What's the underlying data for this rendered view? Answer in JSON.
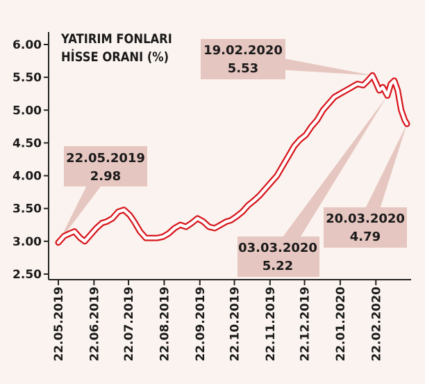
{
  "chart_data": {
    "type": "line",
    "title_lines": [
      "YATIRIM FONLARI",
      "HİSSE ORANI (%)"
    ],
    "ylim": [
      2.5,
      6.0
    ],
    "yticks": [
      "6.00",
      "5.50",
      "5.00",
      "4.50",
      "4.00",
      "3.50",
      "3.00",
      "2.50"
    ],
    "ytick_values": [
      6.0,
      5.5,
      5.0,
      4.5,
      4.0,
      3.5,
      3.0,
      2.5
    ],
    "xtick_labels": [
      "22.05.2019",
      "22.06.2019",
      "22.07.2019",
      "22.08.2019",
      "22.09.2019",
      "22.10.2019",
      "22.11.2019",
      "22.12.2019",
      "22.01.2020",
      "22.02.2020"
    ],
    "xtick_dates": [
      "2019-05-22",
      "2019-06-22",
      "2019-07-22",
      "2019-08-22",
      "2019-09-22",
      "2019-10-22",
      "2019-11-22",
      "2019-12-22",
      "2020-01-22",
      "2020-02-22"
    ],
    "x_range": [
      "2019-05-22",
      "2020-03-20"
    ],
    "line_color": "#d7141c",
    "annotation_bg": "#e6c6c0",
    "grid": false,
    "series": [
      {
        "x": [
          "2019-05-22",
          "2019-05-27",
          "2019-06-01",
          "2019-06-05",
          "2019-06-10",
          "2019-06-14",
          "2019-06-19",
          "2019-06-24",
          "2019-06-29",
          "2019-07-03",
          "2019-07-08",
          "2019-07-13",
          "2019-07-18",
          "2019-07-23",
          "2019-07-27",
          "2019-08-01",
          "2019-08-06",
          "2019-08-11",
          "2019-08-16",
          "2019-08-21",
          "2019-08-26",
          "2019-08-31",
          "2019-09-05",
          "2019-09-10",
          "2019-09-15",
          "2019-09-20",
          "2019-09-25",
          "2019-09-30",
          "2019-10-05",
          "2019-10-10",
          "2019-10-15",
          "2019-10-19",
          "2019-10-24",
          "2019-10-29",
          "2019-11-03",
          "2019-11-08",
          "2019-11-13",
          "2019-11-18",
          "2019-11-23",
          "2019-11-28",
          "2019-12-03",
          "2019-12-08",
          "2019-12-13",
          "2019-12-18",
          "2019-12-23",
          "2019-12-28",
          "2020-01-02",
          "2020-01-07",
          "2020-01-12",
          "2020-01-17",
          "2020-01-22",
          "2020-01-27",
          "2020-02-01",
          "2020-02-06",
          "2020-02-11",
          "2020-02-15",
          "2020-02-19",
          "2020-02-22",
          "2020-02-25",
          "2020-02-28",
          "2020-03-03",
          "2020-03-06",
          "2020-03-09",
          "2020-03-12",
          "2020-03-15",
          "2020-03-18",
          "2020-03-20"
        ],
        "values": [
          2.98,
          3.08,
          3.12,
          3.15,
          3.05,
          3.0,
          3.1,
          3.2,
          3.28,
          3.3,
          3.35,
          3.45,
          3.48,
          3.4,
          3.3,
          3.15,
          3.05,
          3.05,
          3.05,
          3.07,
          3.12,
          3.2,
          3.25,
          3.22,
          3.28,
          3.35,
          3.3,
          3.22,
          3.2,
          3.25,
          3.3,
          3.32,
          3.38,
          3.45,
          3.55,
          3.62,
          3.7,
          3.8,
          3.9,
          4.0,
          4.15,
          4.3,
          4.45,
          4.55,
          4.62,
          4.75,
          4.85,
          5.0,
          5.1,
          5.2,
          5.25,
          5.3,
          5.35,
          5.4,
          5.38,
          5.45,
          5.53,
          5.42,
          5.3,
          5.35,
          5.22,
          5.4,
          5.45,
          5.3,
          5.0,
          4.85,
          4.79
        ]
      }
    ],
    "annotations": [
      {
        "date_label": "22.05.2019",
        "value_label": "2.98",
        "x": "2019-05-22",
        "y": 2.98
      },
      {
        "date_label": "19.02.2020",
        "value_label": "5.53",
        "x": "2020-02-19",
        "y": 5.53
      },
      {
        "date_label": "03.03.2020",
        "value_label": "5.22",
        "x": "2020-03-03",
        "y": 5.22
      },
      {
        "date_label": "20.03.2020",
        "value_label": "4.79",
        "x": "2020-03-20",
        "y": 4.79
      }
    ]
  }
}
